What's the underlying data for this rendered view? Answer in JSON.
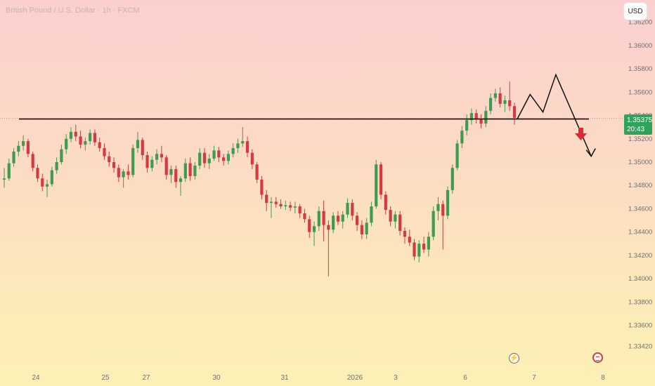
{
  "header": {
    "title": "British Pound / U.S. Dollar · 1h · FXCM",
    "currency_button": "USD"
  },
  "price_tag": {
    "price": "1.35375",
    "countdown": "20:43",
    "color": "#2fa35a"
  },
  "icons": {
    "event": "lightning-icon",
    "flag": "us-flag-icon"
  },
  "colors": {
    "up": "#3f9b4f",
    "down": "#d43a3f",
    "level_line": "#111111",
    "arrow": "#d92b35",
    "axis_text": "#707070"
  },
  "chart_data": {
    "type": "candlestick",
    "ylim": [
      1.3332,
      1.3621
    ],
    "y_ticks": [
      "1.36200",
      "1.36000",
      "1.35800",
      "1.35600",
      "1.35400",
      "1.35200",
      "1.35000",
      "1.34800",
      "1.34600",
      "1.34400",
      "1.34200",
      "1.34000",
      "1.33800",
      "1.33600",
      "1.33420"
    ],
    "x_ticks": [
      "24",
      "25",
      "27",
      "30",
      "31",
      "2026",
      "3",
      "6",
      "7",
      "8"
    ],
    "candles": [
      [
        1.3485,
        1.3495,
        1.3478,
        1.3486
      ],
      [
        1.3486,
        1.3503,
        1.3484,
        1.3499
      ],
      [
        1.3499,
        1.3512,
        1.3496,
        1.3509
      ],
      [
        1.3509,
        1.3518,
        1.3505,
        1.3514
      ],
      [
        1.3514,
        1.3523,
        1.351,
        1.3518
      ],
      [
        1.3518,
        1.352,
        1.3504,
        1.3507
      ],
      [
        1.3507,
        1.3509,
        1.3492,
        1.3495
      ],
      [
        1.3495,
        1.3498,
        1.3483,
        1.3486
      ],
      [
        1.3486,
        1.349,
        1.3475,
        1.3479
      ],
      [
        1.3479,
        1.3485,
        1.347,
        1.3481
      ],
      [
        1.3481,
        1.3496,
        1.3479,
        1.3493
      ],
      [
        1.3493,
        1.3504,
        1.349,
        1.35
      ],
      [
        1.35,
        1.3515,
        1.3498,
        1.3511
      ],
      [
        1.3511,
        1.3524,
        1.3507,
        1.352
      ],
      [
        1.352,
        1.353,
        1.3517,
        1.3526
      ],
      [
        1.3526,
        1.3532,
        1.3518,
        1.3522
      ],
      [
        1.3522,
        1.3527,
        1.3512,
        1.3515
      ],
      [
        1.3515,
        1.3521,
        1.351,
        1.3518
      ],
      [
        1.3518,
        1.3528,
        1.3515,
        1.3525
      ],
      [
        1.3525,
        1.3528,
        1.3514,
        1.3517
      ],
      [
        1.3517,
        1.3521,
        1.3509,
        1.3512
      ],
      [
        1.3512,
        1.3516,
        1.3502,
        1.3505
      ],
      [
        1.3505,
        1.3509,
        1.3496,
        1.35
      ],
      [
        1.35,
        1.3504,
        1.3491,
        1.3495
      ],
      [
        1.3495,
        1.3498,
        1.3483,
        1.3487
      ],
      [
        1.3487,
        1.3494,
        1.3478,
        1.3492
      ],
      [
        1.3492,
        1.3498,
        1.3485,
        1.3489
      ],
      [
        1.3489,
        1.3515,
        1.3487,
        1.3512
      ],
      [
        1.3512,
        1.3526,
        1.3508,
        1.3519
      ],
      [
        1.3519,
        1.3521,
        1.3502,
        1.3506
      ],
      [
        1.3506,
        1.3509,
        1.3491,
        1.3495
      ],
      [
        1.3495,
        1.3505,
        1.3492,
        1.3502
      ],
      [
        1.3502,
        1.3511,
        1.3498,
        1.3507
      ],
      [
        1.3507,
        1.3514,
        1.35,
        1.3504
      ],
      [
        1.3504,
        1.3506,
        1.3485,
        1.3489
      ],
      [
        1.3489,
        1.3497,
        1.3482,
        1.3494
      ],
      [
        1.3494,
        1.3497,
        1.3478,
        1.3483
      ],
      [
        1.3483,
        1.3488,
        1.3471,
        1.3486
      ],
      [
        1.3486,
        1.3503,
        1.3483,
        1.3499
      ],
      [
        1.3499,
        1.3504,
        1.3484,
        1.3488
      ],
      [
        1.3488,
        1.35,
        1.3485,
        1.3497
      ],
      [
        1.3497,
        1.3512,
        1.3494,
        1.3508
      ],
      [
        1.3508,
        1.3512,
        1.3495,
        1.3499
      ],
      [
        1.3499,
        1.3507,
        1.3494,
        1.3503
      ],
      [
        1.3503,
        1.3514,
        1.3501,
        1.351
      ],
      [
        1.351,
        1.3513,
        1.35,
        1.3504
      ],
      [
        1.3504,
        1.3507,
        1.3497,
        1.3501
      ],
      [
        1.3501,
        1.351,
        1.3498,
        1.3507
      ],
      [
        1.3507,
        1.3516,
        1.3504,
        1.3512
      ],
      [
        1.3512,
        1.352,
        1.3508,
        1.3516
      ],
      [
        1.3516,
        1.353,
        1.3513,
        1.3518
      ],
      [
        1.3518,
        1.3522,
        1.3504,
        1.3508
      ],
      [
        1.3508,
        1.3511,
        1.3494,
        1.3498
      ],
      [
        1.3498,
        1.35,
        1.3482,
        1.3485
      ],
      [
        1.3485,
        1.3488,
        1.3468,
        1.3472
      ],
      [
        1.3472,
        1.3476,
        1.3458,
        1.3465
      ],
      [
        1.3465,
        1.347,
        1.3452,
        1.3466
      ],
      [
        1.3466,
        1.347,
        1.3461,
        1.3464
      ],
      [
        1.3464,
        1.3468,
        1.346,
        1.3462
      ],
      [
        1.3462,
        1.3467,
        1.3459,
        1.3463
      ],
      [
        1.3463,
        1.3466,
        1.3458,
        1.3461
      ],
      [
        1.3461,
        1.3466,
        1.3456,
        1.3462
      ],
      [
        1.3462,
        1.3464,
        1.3452,
        1.3456
      ],
      [
        1.3456,
        1.346,
        1.3448,
        1.3451
      ],
      [
        1.3451,
        1.3454,
        1.3435,
        1.344
      ],
      [
        1.344,
        1.3449,
        1.3428,
        1.3445
      ],
      [
        1.3445,
        1.3462,
        1.3441,
        1.3458
      ],
      [
        1.3458,
        1.3467,
        1.3432,
        1.3446
      ],
      [
        1.3446,
        1.345,
        1.3402,
        1.3442
      ],
      [
        1.3442,
        1.3457,
        1.3439,
        1.3454
      ],
      [
        1.3454,
        1.3458,
        1.3446,
        1.3449
      ],
      [
        1.3449,
        1.3458,
        1.3443,
        1.3455
      ],
      [
        1.3455,
        1.3469,
        1.3452,
        1.3465
      ],
      [
        1.3465,
        1.3468,
        1.345,
        1.3454
      ],
      [
        1.3454,
        1.3457,
        1.3441,
        1.3446
      ],
      [
        1.3446,
        1.345,
        1.3434,
        1.3438
      ],
      [
        1.3438,
        1.3452,
        1.3434,
        1.3448
      ],
      [
        1.3448,
        1.3466,
        1.3445,
        1.3462
      ],
      [
        1.3462,
        1.3502,
        1.346,
        1.3498
      ],
      [
        1.3498,
        1.35,
        1.3468,
        1.3472
      ],
      [
        1.3472,
        1.3475,
        1.3455,
        1.3459
      ],
      [
        1.3459,
        1.3462,
        1.3445,
        1.3449
      ],
      [
        1.3449,
        1.3458,
        1.3443,
        1.3455
      ],
      [
        1.3455,
        1.3458,
        1.3437,
        1.3441
      ],
      [
        1.3441,
        1.3444,
        1.343,
        1.3436
      ],
      [
        1.3436,
        1.3442,
        1.3428,
        1.3431
      ],
      [
        1.3431,
        1.3434,
        1.3416,
        1.3419
      ],
      [
        1.3419,
        1.3433,
        1.3414,
        1.343
      ],
      [
        1.343,
        1.3436,
        1.3422,
        1.3425
      ],
      [
        1.3425,
        1.344,
        1.3419,
        1.3436
      ],
      [
        1.3436,
        1.3462,
        1.3433,
        1.3458
      ],
      [
        1.3458,
        1.347,
        1.345,
        1.3464
      ],
      [
        1.3464,
        1.3467,
        1.3425,
        1.3454
      ],
      [
        1.3454,
        1.3479,
        1.3451,
        1.3476
      ],
      [
        1.3476,
        1.3498,
        1.3473,
        1.3495
      ],
      [
        1.3495,
        1.3519,
        1.3493,
        1.3516
      ],
      [
        1.3516,
        1.3531,
        1.3512,
        1.3527
      ],
      [
        1.3527,
        1.3541,
        1.3523,
        1.3536
      ],
      [
        1.3536,
        1.3546,
        1.3532,
        1.3542
      ],
      [
        1.3542,
        1.3545,
        1.3533,
        1.3537
      ],
      [
        1.3537,
        1.3541,
        1.3529,
        1.3533
      ],
      [
        1.3533,
        1.3548,
        1.353,
        1.3544
      ],
      [
        1.3544,
        1.3559,
        1.3541,
        1.3555
      ],
      [
        1.3555,
        1.3563,
        1.3552,
        1.3559
      ],
      [
        1.3559,
        1.3564,
        1.3547,
        1.355
      ],
      [
        1.355,
        1.3557,
        1.3543,
        1.3553
      ],
      [
        1.3553,
        1.3569,
        1.3544,
        1.3548
      ],
      [
        1.3548,
        1.3551,
        1.3532,
        1.3538
      ]
    ],
    "support_level": 1.3537,
    "current_price": 1.35375,
    "projection": [
      [
        1.3537,
        0
      ],
      [
        1.3558,
        1
      ],
      [
        1.3543,
        2
      ],
      [
        1.3575,
        3
      ],
      [
        1.3505,
        4.6
      ]
    ]
  }
}
